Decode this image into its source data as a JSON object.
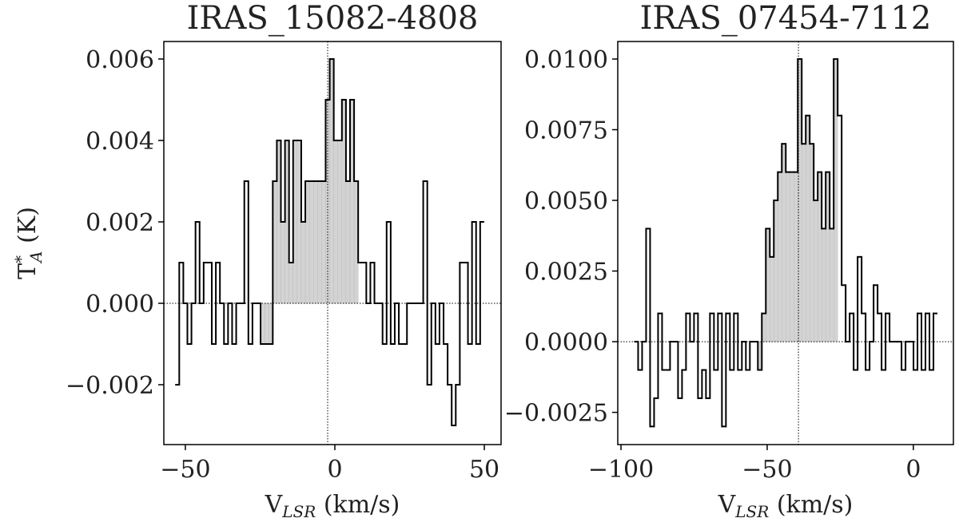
{
  "chart_data": [
    {
      "type": "histogram",
      "title": "IRAS_15082-4808",
      "xlabel": [
        "V",
        "LSR",
        " (km/s)"
      ],
      "ylabel": [
        "T",
        "*",
        "A",
        " (K)"
      ],
      "bins": [
        -53.4,
        -52.04,
        -50.68,
        -49.32,
        -47.96,
        -46.6,
        -45.24,
        -43.88,
        -42.52,
        -41.16,
        -39.8,
        -38.44,
        -37.08,
        -35.72,
        -34.36,
        -33.0,
        -31.64,
        -30.28,
        -28.92,
        -27.56,
        -26.2,
        -24.84,
        -23.48,
        -22.12,
        -20.76,
        -19.4,
        -18.04,
        -16.68,
        -15.32,
        -13.96,
        -12.6,
        -11.24,
        -9.88,
        -8.52,
        -7.16,
        -5.8,
        -4.44,
        -3.08,
        -1.72,
        -0.36,
        1.0,
        2.36,
        3.72,
        5.08,
        6.44,
        7.8,
        9.16,
        10.52,
        11.88,
        13.24,
        14.6,
        15.96,
        17.32,
        18.68,
        20.04,
        21.4,
        22.76,
        24.12,
        25.48,
        26.84,
        28.2,
        29.56,
        30.92,
        32.28,
        33.64,
        35.0,
        36.36,
        37.72,
        39.08,
        40.44,
        41.8,
        43.16,
        44.52,
        45.88,
        47.24,
        48.6,
        49.96
      ],
      "values": [
        -0.002,
        0.001,
        0,
        -0.001,
        0,
        0.002,
        0,
        0.001,
        0.001,
        -0.001,
        0.001,
        0,
        -0.001,
        0,
        -0.001,
        0,
        0,
        0.003,
        -0.001,
        0,
        0,
        -0.001,
        -0.001,
        -0.001,
        0.003,
        0.004,
        0.002,
        0.004,
        0.001,
        0.004,
        0.004,
        0.002,
        0.003,
        0.003,
        0.003,
        0.003,
        0.003,
        0.005,
        0.006,
        0.004,
        0.004,
        0.005,
        0.003,
        0.005,
        0.003,
        0.001,
        0.001,
        0,
        0.001,
        0,
        0,
        -0.001,
        0.002,
        -0.001,
        0,
        -0.001,
        -0.001,
        0,
        0,
        0,
        0,
        0.003,
        -0.002,
        0,
        -0.001,
        0,
        -0.001,
        -0.002,
        -0.003,
        -0.002,
        0.001,
        0.001,
        -0.001,
        0.002,
        -0.001,
        0.002
      ],
      "shade": [
        -26.2,
        7.8
      ],
      "vline": -2.4,
      "color": "#d3d3d3",
      "line_color": "#000000",
      "xlim": [
        -57.2,
        55.6
      ],
      "ylim": [
        -0.00347,
        0.00643
      ],
      "xticks": [
        {
          "value": -50,
          "label": "−50"
        },
        0,
        50
      ],
      "yticks": [
        {
          "value": -0.002,
          "label": "−0.002"
        },
        {
          "value": 0,
          "label": "0.000"
        },
        0.002,
        0.004,
        0.006
      ]
    },
    {
      "type": "histogram",
      "title": "IRAS_07454-7112",
      "xlabel": [
        "V",
        "LSR",
        " (km/s)"
      ],
      "bins": [
        -95.5,
        -94.135,
        -92.77,
        -91.405,
        -90.04,
        -88.675,
        -87.31,
        -85.945,
        -84.58,
        -83.215,
        -81.85,
        -80.485,
        -79.12,
        -77.755,
        -76.39,
        -75.025,
        -73.66,
        -72.295,
        -70.93,
        -69.565,
        -68.2,
        -66.835,
        -65.47,
        -64.105,
        -62.74,
        -61.375,
        -60.01,
        -58.645,
        -57.28,
        -55.915,
        -54.55,
        -53.185,
        -51.82,
        -50.455,
        -49.09,
        -47.725,
        -46.36,
        -44.995,
        -43.63,
        -42.265,
        -40.9,
        -39.535,
        -38.17,
        -36.805,
        -35.44,
        -34.075,
        -32.71,
        -31.345,
        -29.98,
        -28.615,
        -27.25,
        -25.885,
        -24.52,
        -23.155,
        -21.79,
        -20.425,
        -19.06,
        -17.695,
        -16.33,
        -14.965,
        -13.6,
        -12.235,
        -10.87,
        -9.505,
        -8.14,
        -6.775,
        -5.41,
        -4.045,
        -2.68,
        -1.315,
        0.05,
        1.415,
        2.78,
        4.145,
        5.51,
        6.875,
        8.24
      ],
      "values": [
        0,
        -0.001,
        0,
        0.004,
        -0.003,
        -0.002,
        0.001,
        -0.001,
        -0.001,
        0,
        0,
        -0.002,
        -0.001,
        0.001,
        0,
        0.001,
        -0.002,
        -0.001,
        -0.002,
        0.001,
        -0.001,
        0.001,
        -0.003,
        0.001,
        -0.001,
        0.001,
        -0.001,
        0,
        -0.001,
        0,
        0,
        -0.001,
        0.001,
        0.004,
        0.003,
        0.005,
        0.006,
        0.007,
        0.006,
        0.006,
        0.006,
        0.01,
        0.007,
        0.008,
        0.007,
        0.005,
        0.006,
        0.004,
        0.006,
        0.004,
        0.01,
        0.008,
        0.002,
        0,
        0.001,
        -0.001,
        0.003,
        0.001,
        -0.001,
        0,
        0.002,
        0.001,
        -0.001,
        0.001,
        0,
        0,
        0,
        -0.001,
        0,
        0,
        -0.001,
        0.001,
        -0.001,
        0.001,
        -0.001,
        0.001
      ],
      "shade": [
        -53.185,
        -25.885
      ],
      "vline": -39.3,
      "color": "#d3d3d3",
      "line_color": "#000000",
      "xlim": [
        -101.1,
        13.7
      ],
      "ylim": [
        -0.00364,
        0.01062
      ],
      "xticks": [
        {
          "value": -100,
          "label": "−100"
        },
        {
          "value": -50,
          "label": "−50"
        },
        0
      ],
      "yticks": [
        {
          "value": -0.0025,
          "label": "−0.0025"
        },
        {
          "value": 0,
          "label": "0.0000"
        },
        0.0025,
        {
          "value": 0.005,
          "label": "0.0050"
        },
        0.0075,
        {
          "value": 0.01,
          "label": "0.0100"
        }
      ]
    }
  ]
}
